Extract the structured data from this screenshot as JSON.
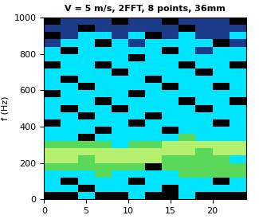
{
  "chart_data": {
    "type": "heatmap",
    "title": "V = 5 m/s, 2FFT, 8 points, 36mm",
    "y_label": "f (Hz)",
    "x": [
      1,
      3,
      5,
      7,
      9,
      11,
      13,
      15,
      17,
      19,
      21,
      23
    ],
    "y": [
      20,
      60,
      100,
      140,
      180,
      220,
      260,
      300,
      340,
      380,
      420,
      460,
      500,
      540,
      580,
      620,
      660,
      700,
      740,
      780,
      820,
      860,
      900,
      940,
      980
    ],
    "cells": [
      [
        0,
        0,
        2,
        0,
        0,
        2,
        0,
        0,
        2,
        0,
        0,
        0
      ],
      [
        2,
        2,
        0,
        2,
        2,
        2,
        2,
        0,
        2,
        2,
        2,
        2
      ],
      [
        2,
        0,
        2,
        2,
        2,
        0,
        2,
        2,
        2,
        2,
        0,
        2
      ],
      [
        2,
        2,
        2,
        3,
        2,
        2,
        2,
        2,
        3,
        3,
        3,
        3
      ],
      [
        3,
        3,
        3,
        3,
        3,
        3,
        0,
        3,
        3,
        3,
        3,
        3
      ],
      [
        4,
        4,
        3,
        4,
        4,
        4,
        4,
        3,
        3,
        3,
        3,
        2
      ],
      [
        4,
        4,
        4,
        4,
        4,
        4,
        4,
        4,
        4,
        3,
        4,
        4
      ],
      [
        3,
        3,
        3,
        3,
        2,
        3,
        3,
        4,
        4,
        4,
        4,
        4
      ],
      [
        2,
        2,
        0,
        2,
        2,
        2,
        2,
        2,
        3,
        2,
        2,
        2
      ],
      [
        2,
        2,
        2,
        0,
        2,
        2,
        2,
        0,
        2,
        2,
        2,
        2
      ],
      [
        0,
        2,
        2,
        2,
        2,
        0,
        2,
        2,
        2,
        2,
        0,
        2
      ],
      [
        2,
        2,
        0,
        2,
        2,
        2,
        0,
        2,
        2,
        2,
        2,
        2
      ],
      [
        2,
        0,
        2,
        2,
        0,
        2,
        2,
        2,
        2,
        0,
        2,
        2
      ],
      [
        2,
        2,
        2,
        0,
        2,
        2,
        2,
        2,
        0,
        2,
        2,
        0
      ],
      [
        0,
        2,
        2,
        2,
        2,
        0,
        2,
        2,
        2,
        2,
        2,
        2
      ],
      [
        2,
        2,
        0,
        2,
        2,
        2,
        2,
        0,
        2,
        2,
        0,
        2
      ],
      [
        2,
        0,
        2,
        2,
        2,
        2,
        0,
        2,
        2,
        2,
        2,
        2
      ],
      [
        2,
        2,
        2,
        2,
        0,
        2,
        2,
        2,
        2,
        0,
        2,
        2
      ],
      [
        0,
        2,
        2,
        0,
        2,
        2,
        2,
        2,
        0,
        2,
        2,
        0
      ],
      [
        2,
        2,
        2,
        2,
        2,
        0,
        2,
        2,
        2,
        2,
        2,
        2
      ],
      [
        2,
        0,
        2,
        2,
        2,
        2,
        2,
        0,
        2,
        1,
        2,
        2
      ],
      [
        1,
        2,
        2,
        0,
        2,
        1,
        2,
        2,
        2,
        2,
        0,
        1
      ],
      [
        0,
        1,
        2,
        2,
        1,
        2,
        0,
        1,
        2,
        1,
        1,
        2
      ],
      [
        1,
        1,
        0,
        1,
        1,
        1,
        1,
        1,
        0,
        1,
        1,
        1
      ],
      [
        0,
        1,
        1,
        1,
        0,
        1,
        1,
        0,
        1,
        1,
        1,
        0
      ]
    ],
    "colors": [
      "#000000",
      "#1a3a8a",
      "#00e5ff",
      "#5ad85a",
      "#b4f06e"
    ],
    "xlim": [
      0,
      24
    ],
    "ylim": [
      0,
      1000
    ],
    "xticks": [
      0,
      5,
      10,
      15,
      20
    ],
    "yticks": [
      0,
      200,
      400,
      600,
      800,
      1000
    ]
  }
}
